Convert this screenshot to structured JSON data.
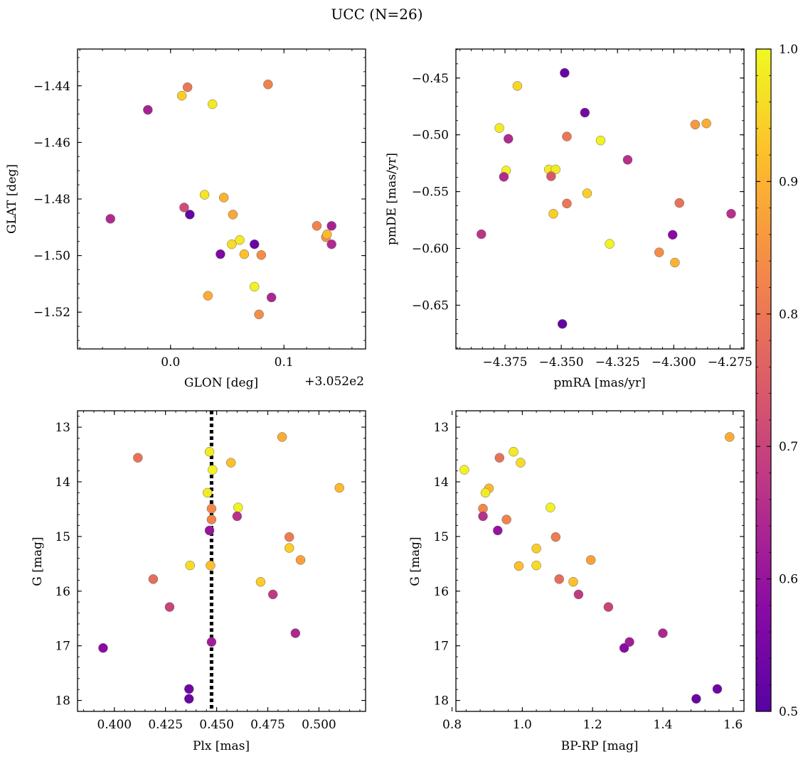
{
  "figure": {
    "title": "UCC (N=26)"
  },
  "colorbar": {
    "cmap": "plasma",
    "min": 0.5,
    "max": 1.0,
    "ticks": [
      0.5,
      0.6,
      0.7,
      0.8,
      0.9,
      1.0
    ],
    "tick_labels": [
      "0.5",
      "0.6",
      "0.7",
      "0.8",
      "0.9",
      "1.0"
    ]
  },
  "chart_data": [
    {
      "id": "glon-glat",
      "type": "scatter",
      "xlabel": "GLON [deg]",
      "ylabel": "GLAT [deg]",
      "x_offset_label": "+3.052e2",
      "xlim": [
        -0.082,
        0.172
      ],
      "ylim": [
        -1.533,
        -1.427
      ],
      "xticks": [
        0.0,
        0.1
      ],
      "xtick_labels": [
        "0.0",
        "0.1"
      ],
      "yticks": [
        -1.44,
        -1.46,
        -1.48,
        -1.5,
        -1.52
      ],
      "ytick_labels": [
        "−1.44",
        "−1.46",
        "−1.48",
        "−1.50",
        "−1.52"
      ],
      "points": [
        {
          "x": -0.053,
          "y": -1.487,
          "c": 0.65
        },
        {
          "x": -0.02,
          "y": -1.4485,
          "c": 0.63
        },
        {
          "x": 0.01,
          "y": -1.4435,
          "c": 0.94
        },
        {
          "x": 0.015,
          "y": -1.4405,
          "c": 0.8
        },
        {
          "x": 0.037,
          "y": -1.4465,
          "c": 0.98
        },
        {
          "x": 0.086,
          "y": -1.4395,
          "c": 0.82
        },
        {
          "x": 0.012,
          "y": -1.483,
          "c": 0.72
        },
        {
          "x": 0.017,
          "y": -1.4855,
          "c": 0.52
        },
        {
          "x": 0.03,
          "y": -1.4785,
          "c": 0.97
        },
        {
          "x": 0.047,
          "y": -1.4795,
          "c": 0.9
        },
        {
          "x": 0.055,
          "y": -1.4855,
          "c": 0.88
        },
        {
          "x": 0.044,
          "y": -1.4995,
          "c": 0.56
        },
        {
          "x": 0.054,
          "y": -1.496,
          "c": 0.96
        },
        {
          "x": 0.061,
          "y": -1.4945,
          "c": 0.98
        },
        {
          "x": 0.065,
          "y": -1.4995,
          "c": 0.92
        },
        {
          "x": 0.074,
          "y": -1.496,
          "c": 0.53
        },
        {
          "x": 0.08,
          "y": -1.4998,
          "c": 0.84
        },
        {
          "x": 0.033,
          "y": -1.5142,
          "c": 0.89
        },
        {
          "x": 0.074,
          "y": -1.511,
          "c": 0.99
        },
        {
          "x": 0.089,
          "y": -1.5148,
          "c": 0.64
        },
        {
          "x": 0.078,
          "y": -1.5208,
          "c": 0.84
        },
        {
          "x": 0.129,
          "y": -1.4895,
          "c": 0.82
        },
        {
          "x": 0.137,
          "y": -1.4935,
          "c": 0.85
        },
        {
          "x": 0.138,
          "y": -1.4925,
          "c": 0.91
        },
        {
          "x": 0.142,
          "y": -1.4895,
          "c": 0.63
        },
        {
          "x": 0.142,
          "y": -1.496,
          "c": 0.65
        }
      ]
    },
    {
      "id": "pm",
      "type": "scatter",
      "xlabel": "pmRA [mas/yr]",
      "ylabel": "pmDE [mas/yr]",
      "xlim": [
        -4.3968,
        -4.2688
      ],
      "ylim": [
        -0.6885,
        -0.4245
      ],
      "xticks": [
        -4.375,
        -4.35,
        -4.325,
        -4.3,
        -4.275
      ],
      "xtick_labels": [
        "−4.375",
        "−4.350",
        "−4.325",
        "−4.300",
        "−4.275"
      ],
      "yticks": [
        -0.45,
        -0.5,
        -0.55,
        -0.6,
        -0.65
      ],
      "ytick_labels": [
        "−0.45",
        "−0.50",
        "−0.55",
        "−0.60",
        "−0.65"
      ],
      "points": [
        {
          "x": -4.3485,
          "y": -0.4455,
          "c": 0.53
        },
        {
          "x": -4.3695,
          "y": -0.457,
          "c": 0.95
        },
        {
          "x": -4.3395,
          "y": -0.4805,
          "c": 0.55
        },
        {
          "x": -4.3775,
          "y": -0.494,
          "c": 0.98
        },
        {
          "x": -4.3735,
          "y": -0.5035,
          "c": 0.65
        },
        {
          "x": -4.3475,
          "y": -0.5015,
          "c": 0.8
        },
        {
          "x": -4.2905,
          "y": -0.491,
          "c": 0.86
        },
        {
          "x": -4.2855,
          "y": -0.49,
          "c": 0.89
        },
        {
          "x": -4.3325,
          "y": -0.505,
          "c": 0.99
        },
        {
          "x": -4.3205,
          "y": -0.522,
          "c": 0.66
        },
        {
          "x": -4.3745,
          "y": -0.5315,
          "c": 0.99
        },
        {
          "x": -4.3755,
          "y": -0.537,
          "c": 0.65
        },
        {
          "x": -4.3555,
          "y": -0.5305,
          "c": 0.98
        },
        {
          "x": -4.3525,
          "y": -0.5305,
          "c": 0.98
        },
        {
          "x": -4.3545,
          "y": -0.5365,
          "c": 0.74
        },
        {
          "x": -4.3385,
          "y": -0.5515,
          "c": 0.94
        },
        {
          "x": -4.3475,
          "y": -0.5605,
          "c": 0.8
        },
        {
          "x": -4.3535,
          "y": -0.5695,
          "c": 0.94
        },
        {
          "x": -4.2975,
          "y": -0.56,
          "c": 0.79
        },
        {
          "x": -4.2745,
          "y": -0.5695,
          "c": 0.66
        },
        {
          "x": -4.3855,
          "y": -0.5875,
          "c": 0.67
        },
        {
          "x": -4.3285,
          "y": -0.596,
          "c": 0.99
        },
        {
          "x": -4.3005,
          "y": -0.588,
          "c": 0.58
        },
        {
          "x": -4.3065,
          "y": -0.6035,
          "c": 0.84
        },
        {
          "x": -4.2995,
          "y": -0.6125,
          "c": 0.9
        },
        {
          "x": -4.3495,
          "y": -0.6665,
          "c": 0.52
        }
      ]
    },
    {
      "id": "plx-g",
      "type": "scatter",
      "xlabel": "Plx [mas]",
      "ylabel": "G [mag]",
      "xlim": [
        0.382,
        0.5228
      ],
      "ylim": [
        18.2,
        12.7
      ],
      "y_inverted": true,
      "xticks": [
        0.4,
        0.425,
        0.45,
        0.475,
        0.5
      ],
      "xtick_labels": [
        "0.400",
        "0.425",
        "0.450",
        "0.475",
        "0.500"
      ],
      "yticks": [
        13,
        14,
        15,
        16,
        17,
        18
      ],
      "ytick_labels": [
        "13",
        "14",
        "15",
        "16",
        "17",
        "18"
      ],
      "vline": 0.4475,
      "points": [
        {
          "x": 0.4115,
          "y": 13.56,
          "c": 0.79
        },
        {
          "x": 0.482,
          "y": 13.18,
          "c": 0.89
        },
        {
          "x": 0.4465,
          "y": 13.45,
          "c": 0.98
        },
        {
          "x": 0.457,
          "y": 13.65,
          "c": 0.92
        },
        {
          "x": 0.448,
          "y": 13.78,
          "c": 0.99
        },
        {
          "x": 0.51,
          "y": 14.11,
          "c": 0.91
        },
        {
          "x": 0.4455,
          "y": 14.2,
          "c": 0.98
        },
        {
          "x": 0.4605,
          "y": 14.47,
          "c": 0.99
        },
        {
          "x": 0.4475,
          "y": 14.49,
          "c": 0.83
        },
        {
          "x": 0.4475,
          "y": 14.69,
          "c": 0.82
        },
        {
          "x": 0.46,
          "y": 14.63,
          "c": 0.66
        },
        {
          "x": 0.4465,
          "y": 14.89,
          "c": 0.6
        },
        {
          "x": 0.4855,
          "y": 15.01,
          "c": 0.81
        },
        {
          "x": 0.4855,
          "y": 15.21,
          "c": 0.94
        },
        {
          "x": 0.491,
          "y": 15.43,
          "c": 0.87
        },
        {
          "x": 0.437,
          "y": 15.53,
          "c": 0.96
        },
        {
          "x": 0.447,
          "y": 15.53,
          "c": 0.92
        },
        {
          "x": 0.419,
          "y": 15.78,
          "c": 0.78
        },
        {
          "x": 0.4715,
          "y": 15.83,
          "c": 0.94
        },
        {
          "x": 0.4775,
          "y": 16.06,
          "c": 0.68
        },
        {
          "x": 0.427,
          "y": 16.29,
          "c": 0.7
        },
        {
          "x": 0.4885,
          "y": 16.77,
          "c": 0.64
        },
        {
          "x": 0.4475,
          "y": 16.93,
          "c": 0.62
        },
        {
          "x": 0.3945,
          "y": 17.04,
          "c": 0.58
        },
        {
          "x": 0.4365,
          "y": 17.79,
          "c": 0.54
        },
        {
          "x": 0.4365,
          "y": 17.97,
          "c": 0.53
        }
      ]
    },
    {
      "id": "cmd",
      "type": "scatter",
      "xlabel": "BP-RP [mag]",
      "ylabel": "G [mag]",
      "xlim": [
        0.811,
        1.631
      ],
      "ylim": [
        18.2,
        12.7
      ],
      "y_inverted": true,
      "xticks": [
        0.8,
        1.0,
        1.2,
        1.4,
        1.6
      ],
      "xtick_labels": [
        "0.8",
        "1.0",
        "1.2",
        "1.4",
        "1.6"
      ],
      "yticks": [
        13,
        14,
        15,
        16,
        17,
        18
      ],
      "ytick_labels": [
        "13",
        "14",
        "15",
        "16",
        "17",
        "18"
      ],
      "points": [
        {
          "x": 0.835,
          "y": 13.78,
          "c": 0.99
        },
        {
          "x": 1.59,
          "y": 13.18,
          "c": 0.89
        },
        {
          "x": 0.975,
          "y": 13.45,
          "c": 0.98
        },
        {
          "x": 0.935,
          "y": 13.56,
          "c": 0.79
        },
        {
          "x": 0.995,
          "y": 13.65,
          "c": 0.96
        },
        {
          "x": 0.905,
          "y": 14.12,
          "c": 0.91
        },
        {
          "x": 0.895,
          "y": 14.2,
          "c": 0.98
        },
        {
          "x": 1.08,
          "y": 14.47,
          "c": 0.99
        },
        {
          "x": 0.888,
          "y": 14.49,
          "c": 0.83
        },
        {
          "x": 0.888,
          "y": 14.63,
          "c": 0.66
        },
        {
          "x": 0.955,
          "y": 14.69,
          "c": 0.82
        },
        {
          "x": 0.93,
          "y": 14.89,
          "c": 0.6
        },
        {
          "x": 1.095,
          "y": 15.01,
          "c": 0.81
        },
        {
          "x": 1.04,
          "y": 15.22,
          "c": 0.94
        },
        {
          "x": 1.195,
          "y": 15.43,
          "c": 0.87
        },
        {
          "x": 0.99,
          "y": 15.54,
          "c": 0.92
        },
        {
          "x": 1.04,
          "y": 15.53,
          "c": 0.96
        },
        {
          "x": 1.105,
          "y": 15.78,
          "c": 0.78
        },
        {
          "x": 1.145,
          "y": 15.83,
          "c": 0.92
        },
        {
          "x": 1.16,
          "y": 16.06,
          "c": 0.68
        },
        {
          "x": 1.245,
          "y": 16.29,
          "c": 0.7
        },
        {
          "x": 1.4,
          "y": 16.77,
          "c": 0.64
        },
        {
          "x": 1.305,
          "y": 16.93,
          "c": 0.62
        },
        {
          "x": 1.29,
          "y": 17.04,
          "c": 0.58
        },
        {
          "x": 1.555,
          "y": 17.79,
          "c": 0.54
        },
        {
          "x": 1.495,
          "y": 17.97,
          "c": 0.53
        }
      ]
    }
  ]
}
